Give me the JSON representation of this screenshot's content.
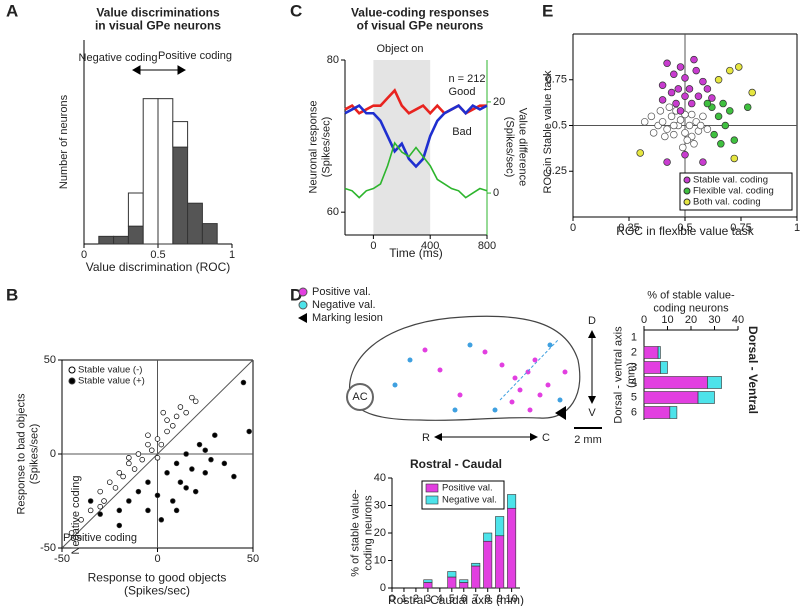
{
  "panel_labels": [
    "A",
    "B",
    "C",
    "D",
    "E"
  ],
  "diagram": {
    "legend": [
      "Positive val.",
      "Negative val.",
      "Marking lesion"
    ],
    "ac": "AC",
    "r": "R",
    "c": "C",
    "d": "D",
    "v": "V",
    "scale": "2 mm",
    "section_titles": [
      "Rostral - Caudal",
      "Dorsal - Ventral"
    ]
  },
  "chart_data": [
    {
      "type": "histogram",
      "title": [
        "Value discriminations",
        "in visual GPe neurons"
      ],
      "x_label": "Value discrimination (ROC)",
      "y_label": "Number of neurons",
      "bins": [
        0.1,
        0.2,
        0.3,
        0.4,
        0.5,
        0.6,
        0.7,
        0.8,
        0.9
      ],
      "stacked": true,
      "series": [
        {
          "color": "#555555",
          "values": [
            3,
            3,
            7,
            0,
            0,
            38,
            16,
            8
          ]
        },
        {
          "color": "#ffffff",
          "values": [
            0,
            0,
            13,
            57,
            57,
            10,
            0,
            0
          ]
        }
      ],
      "xlim": [
        0,
        1
      ],
      "xticks": [
        0,
        0.5,
        1
      ],
      "ylim": [
        0,
        80
      ],
      "annotations": [
        "Negative coding",
        "Positive coding"
      ]
    },
    {
      "type": "scatter",
      "x_label": [
        "Response to good objects",
        "(Spikes/sec)"
      ],
      "y_label": [
        "Response to bad objects",
        "(Spikes/sec)"
      ],
      "xlim": [
        -50,
        50
      ],
      "ylim": [
        -50,
        50
      ],
      "xticks": [
        -50,
        0,
        50
      ],
      "yticks": [
        -50,
        0,
        50
      ],
      "crosshair": 0,
      "diagonal": true,
      "legend": "upper left",
      "annotations": [
        "Negative coding",
        "Positive coding"
      ],
      "series": [
        {
          "name": "Stable value (-)",
          "marker": "open",
          "color": "#000000",
          "x": [
            -45,
            -40,
            -35,
            -30,
            -28,
            -25,
            -22,
            -20,
            -18,
            -15,
            -12,
            -10,
            -8,
            -5,
            -3,
            0,
            2,
            5,
            5,
            8,
            10,
            12,
            15,
            18,
            -5,
            -15,
            3,
            20,
            -30,
            0
          ],
          "y": [
            -42,
            -35,
            -30,
            -20,
            -25,
            -15,
            -18,
            -10,
            -12,
            -5,
            -8,
            0,
            -3,
            5,
            2,
            8,
            5,
            12,
            18,
            15,
            20,
            25,
            22,
            30,
            10,
            -2,
            22,
            28,
            -28,
            -2
          ]
        },
        {
          "name": "Stable value (+)",
          "marker": "filled",
          "color": "#000000",
          "x": [
            -35,
            -30,
            -20,
            -15,
            -10,
            -5,
            0,
            5,
            8,
            10,
            12,
            15,
            18,
            20,
            22,
            25,
            28,
            30,
            35,
            40,
            45,
            48,
            -5,
            2,
            15,
            25,
            10,
            -20
          ],
          "y": [
            -25,
            -32,
            -30,
            -25,
            -20,
            -15,
            -22,
            -10,
            -25,
            -5,
            -15,
            0,
            -8,
            -20,
            5,
            -10,
            -3,
            10,
            -5,
            -12,
            38,
            12,
            -30,
            -35,
            -18,
            2,
            -30,
            -38
          ]
        }
      ]
    },
    {
      "type": "line",
      "title": [
        "Value-coding responses",
        "of visual GPe neurons"
      ],
      "x_label": "Time (ms)",
      "y_label": [
        "Neuronal response",
        "(Spikes/sec)"
      ],
      "y2_label": [
        "Value difference",
        "(Spikes/sec)"
      ],
      "y2_color": "#2db52d",
      "annotations": [
        "Object on",
        "n = 212"
      ],
      "shade": [
        0,
        400
      ],
      "x": [
        -200,
        -150,
        -100,
        -50,
        0,
        50,
        100,
        150,
        200,
        250,
        300,
        350,
        400,
        450,
        500,
        550,
        600,
        650,
        700,
        750,
        800
      ],
      "xlim": [
        -200,
        800
      ],
      "xticks": [
        0,
        400,
        800
      ],
      "ylim": [
        57,
        80
      ],
      "yticks": [
        60,
        80
      ],
      "y2lim": [
        -9.2,
        29.2
      ],
      "y2ticks": [
        0,
        20
      ],
      "series": [
        {
          "name": "Good",
          "color": "#e8231f",
          "values": [
            73.5,
            74,
            73,
            73.5,
            74,
            74,
            75,
            76,
            74,
            73,
            73.5,
            74,
            73,
            74,
            73,
            73.5,
            74,
            73,
            73.5,
            74,
            74
          ]
        },
        {
          "name": "Bad",
          "color": "#1f2fd0",
          "values": [
            73,
            73.5,
            74,
            73,
            73,
            72,
            70,
            68,
            69,
            67,
            66,
            67,
            70,
            72,
            73,
            73.5,
            74,
            73,
            74,
            73.5,
            74
          ]
        },
        {
          "color": "#2db52d",
          "axis": "y2",
          "values": [
            1,
            0.5,
            -1,
            0.5,
            1,
            2,
            6,
            11,
            9,
            8,
            10,
            8,
            6,
            3,
            2,
            1,
            0.5,
            -1,
            0,
            1,
            0.5
          ]
        }
      ]
    },
    {
      "type": "bar",
      "orientation": "horizontal",
      "stacked": true,
      "title": [
        "% of stable value-",
        "coding neurons"
      ],
      "y_label": [
        "Dorsal - ventral axis",
        "(mm)"
      ],
      "categories": [
        "1",
        "2",
        "3",
        "4",
        "5",
        "6"
      ],
      "xlim": [
        0,
        40
      ],
      "xticks": [
        0,
        10,
        20,
        30,
        40
      ],
      "series": [
        {
          "color": "#e23fe0",
          "values": [
            0,
            6,
            7,
            27,
            23,
            11
          ]
        },
        {
          "color": "#4de3ea",
          "values": [
            0,
            1,
            3,
            6,
            7,
            3
          ]
        }
      ]
    },
    {
      "type": "bar",
      "stacked": true,
      "x_label": "Rostral-Caudal axis (mm)",
      "y_label": [
        "% of stable value-",
        "coding neurons"
      ],
      "x": [
        1,
        2,
        3,
        4,
        5,
        6,
        7,
        8,
        9,
        10
      ],
      "xlim": [
        0,
        10.7
      ],
      "xticks": [
        0,
        1,
        2,
        3,
        4,
        5,
        6,
        7,
        8,
        9,
        10
      ],
      "ylim": [
        0,
        40
      ],
      "yticks": [
        0,
        10,
        20,
        30,
        40
      ],
      "legend": "upper left",
      "series": [
        {
          "name": "Positive val.",
          "color": "#e23fe0",
          "values": [
            0,
            0,
            2,
            0,
            4,
            2,
            8,
            17,
            19,
            29
          ]
        },
        {
          "name": "Negative val.",
          "color": "#4de3ea",
          "values": [
            0,
            0,
            1,
            0,
            2,
            1,
            1,
            3,
            7,
            5
          ]
        }
      ]
    },
    {
      "type": "scatter",
      "x_label": "ROC in flexible value task",
      "y_label": "ROC in Stable value task",
      "xlim": [
        0,
        1
      ],
      "ylim": [
        0,
        1
      ],
      "xticks": [
        0,
        0.25,
        0.5,
        0.75,
        1
      ],
      "yticks": [
        0.25,
        0.5,
        0.75
      ],
      "crosshair": 0.5,
      "legend": "lower right",
      "series": [
        {
          "marker": "open",
          "color": "#555555",
          "x": [
            0.35,
            0.38,
            0.4,
            0.42,
            0.44,
            0.45,
            0.47,
            0.48,
            0.5,
            0.5,
            0.52,
            0.53,
            0.55,
            0.56,
            0.58,
            0.41,
            0.46,
            0.43,
            0.51,
            0.54,
            0.36,
            0.39,
            0.49,
            0.57,
            0.6,
            0.32,
            0.45,
            0.53
          ],
          "y": [
            0.55,
            0.5,
            0.52,
            0.48,
            0.55,
            0.45,
            0.5,
            0.53,
            0.46,
            0.56,
            0.5,
            0.44,
            0.52,
            0.47,
            0.55,
            0.44,
            0.58,
            0.6,
            0.42,
            0.4,
            0.46,
            0.58,
            0.38,
            0.5,
            0.48,
            0.52,
            0.5,
            0.56
          ]
        },
        {
          "name": "Stable val. coding",
          "marker": "filled",
          "color": "#c83ccf",
          "x": [
            0.42,
            0.45,
            0.48,
            0.5,
            0.52,
            0.55,
            0.47,
            0.44,
            0.58,
            0.5,
            0.53,
            0.4,
            0.56,
            0.46,
            0.6,
            0.42,
            0.5,
            0.58,
            0.4,
            0.54,
            0.62,
            0.48
          ],
          "y": [
            0.84,
            0.78,
            0.82,
            0.76,
            0.7,
            0.8,
            0.7,
            0.68,
            0.74,
            0.66,
            0.62,
            0.72,
            0.66,
            0.62,
            0.7,
            0.3,
            0.34,
            0.3,
            0.64,
            0.86,
            0.65,
            0.58
          ]
        },
        {
          "name": "Flexible val. coding",
          "marker": "filled",
          "color": "#3fc03f",
          "x": [
            0.62,
            0.65,
            0.68,
            0.7,
            0.63,
            0.66,
            0.72,
            0.6,
            0.78,
            0.67
          ],
          "y": [
            0.6,
            0.55,
            0.5,
            0.58,
            0.45,
            0.4,
            0.42,
            0.62,
            0.6,
            0.62
          ]
        },
        {
          "name": "Both val. coding",
          "marker": "filled",
          "color": "#e6e640",
          "x": [
            0.7,
            0.74,
            0.8,
            0.3,
            0.72,
            0.65
          ],
          "y": [
            0.8,
            0.82,
            0.68,
            0.35,
            0.32,
            0.75
          ]
        }
      ]
    }
  ]
}
